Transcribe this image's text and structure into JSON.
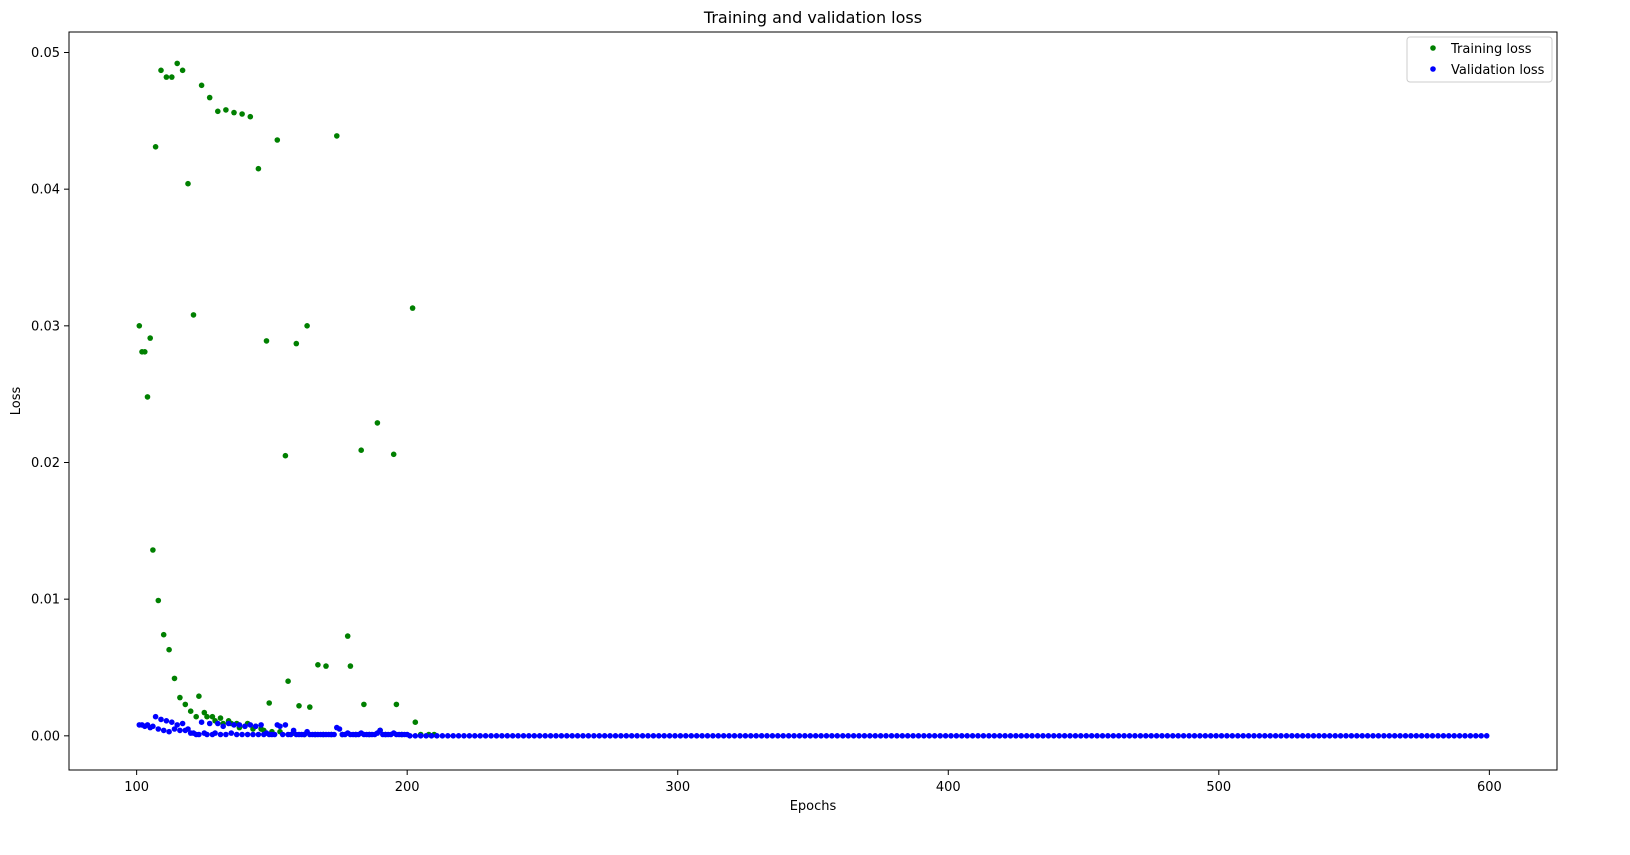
{
  "chart_data": {
    "type": "scatter",
    "title": "Training and validation loss",
    "xlabel": "Epochs",
    "ylabel": "Loss",
    "xlim": [
      75,
      625
    ],
    "ylim": [
      -0.0025,
      0.0515
    ],
    "xticks": [
      100,
      200,
      300,
      400,
      500,
      600
    ],
    "xtick_labels": [
      "100",
      "200",
      "300",
      "400",
      "500",
      "600"
    ],
    "yticks": [
      0.0,
      0.01,
      0.02,
      0.03,
      0.04,
      0.05
    ],
    "ytick_labels": [
      "0.00",
      "0.01",
      "0.02",
      "0.03",
      "0.04",
      "0.05"
    ],
    "grid": false,
    "legend_position": "top-right",
    "series": [
      {
        "name": "Training loss",
        "color": "#008000",
        "points": [
          [
            101,
            0.03
          ],
          [
            102,
            0.0281
          ],
          [
            103,
            0.0281
          ],
          [
            104,
            0.0248
          ],
          [
            105,
            0.0291
          ],
          [
            106,
            0.0136
          ],
          [
            107,
            0.0431
          ],
          [
            108,
            0.0099
          ],
          [
            109,
            0.0487
          ],
          [
            110,
            0.0074
          ],
          [
            111,
            0.0482
          ],
          [
            112,
            0.0063
          ],
          [
            113,
            0.0482
          ],
          [
            114,
            0.0042
          ],
          [
            115,
            0.0492
          ],
          [
            116,
            0.0028
          ],
          [
            117,
            0.0487
          ],
          [
            118,
            0.0023
          ],
          [
            119,
            0.0404
          ],
          [
            120,
            0.0018
          ],
          [
            121,
            0.0308
          ],
          [
            122,
            0.0014
          ],
          [
            123,
            0.0029
          ],
          [
            124,
            0.0476
          ],
          [
            125,
            0.0017
          ],
          [
            126,
            0.0014
          ],
          [
            127,
            0.0467
          ],
          [
            128,
            0.0014
          ],
          [
            129,
            0.0011
          ],
          [
            130,
            0.0457
          ],
          [
            131,
            0.0013
          ],
          [
            132,
            0.0009
          ],
          [
            133,
            0.0458
          ],
          [
            134,
            0.0011
          ],
          [
            135,
            0.0009
          ],
          [
            136,
            0.0456
          ],
          [
            137,
            0.0009
          ],
          [
            138,
            0.0006
          ],
          [
            139,
            0.0455
          ],
          [
            140,
            0.0007
          ],
          [
            141,
            0.0009
          ],
          [
            142,
            0.0453
          ],
          [
            143,
            0.0005
          ],
          [
            144,
            0.0007
          ],
          [
            145,
            0.0415
          ],
          [
            146,
            0.0005
          ],
          [
            147,
            0.0004
          ],
          [
            148,
            0.0289
          ],
          [
            149,
            0.0024
          ],
          [
            150,
            0.0003
          ],
          [
            152,
            0.0436
          ],
          [
            153,
            0.0003
          ],
          [
            155,
            0.0205
          ],
          [
            156,
            0.004
          ],
          [
            158,
            0.0002
          ],
          [
            159,
            0.0287
          ],
          [
            160,
            0.0022
          ],
          [
            162,
            0.0001
          ],
          [
            163,
            0.03
          ],
          [
            164,
            0.0021
          ],
          [
            166,
            0.0001
          ],
          [
            167,
            0.0052
          ],
          [
            169,
            0.0001
          ],
          [
            170,
            0.0051
          ],
          [
            172,
            0.0001
          ],
          [
            174,
            0.0439
          ],
          [
            176,
            0.0001
          ],
          [
            178,
            0.0073
          ],
          [
            179,
            0.0051
          ],
          [
            181,
            0.0001
          ],
          [
            183,
            0.0209
          ],
          [
            184,
            0.0023
          ],
          [
            186,
            0.0001
          ],
          [
            189,
            0.0229
          ],
          [
            190,
            0.0004
          ],
          [
            192,
            0.0001
          ],
          [
            195,
            0.0206
          ],
          [
            196,
            0.0023
          ],
          [
            198,
            0.0001
          ],
          [
            202,
            0.0313
          ],
          [
            203,
            0.001
          ],
          [
            205,
            0.0001
          ],
          [
            208,
            0.0001
          ],
          [
            210,
            0.0001
          ]
        ]
      },
      {
        "name": "Validation loss",
        "color": "#0000ff",
        "points": [
          [
            101,
            0.0008
          ],
          [
            102,
            0.0008
          ],
          [
            103,
            0.0007
          ],
          [
            104,
            0.0008
          ],
          [
            105,
            0.0006
          ],
          [
            106,
            0.0007
          ],
          [
            107,
            0.0014
          ],
          [
            108,
            0.0005
          ],
          [
            109,
            0.0012
          ],
          [
            110,
            0.0004
          ],
          [
            111,
            0.0011
          ],
          [
            112,
            0.0003
          ],
          [
            113,
            0.001
          ],
          [
            114,
            0.0005
          ],
          [
            115,
            0.0008
          ],
          [
            116,
            0.0004
          ],
          [
            117,
            0.0009
          ],
          [
            118,
            0.0004
          ],
          [
            119,
            0.0005
          ],
          [
            120,
            0.0002
          ],
          [
            121,
            0.0002
          ],
          [
            122,
            0.0001
          ],
          [
            123,
            0.0001
          ],
          [
            124,
            0.001
          ],
          [
            125,
            0.0002
          ],
          [
            126,
            0.0001
          ],
          [
            127,
            0.0009
          ],
          [
            128,
            0.0001
          ],
          [
            129,
            0.0002
          ],
          [
            130,
            0.0009
          ],
          [
            131,
            0.0001
          ],
          [
            132,
            0.0007
          ],
          [
            133,
            0.0001
          ],
          [
            134,
            0.0009
          ],
          [
            135,
            0.0002
          ],
          [
            136,
            0.0008
          ],
          [
            137,
            0.0001
          ],
          [
            138,
            0.0008
          ],
          [
            139,
            0.0001
          ],
          [
            140,
            0.0007
          ],
          [
            141,
            0.0001
          ],
          [
            142,
            0.0008
          ],
          [
            143,
            0.0001
          ],
          [
            144,
            0.0007
          ],
          [
            145,
            0.0001
          ],
          [
            146,
            0.0008
          ],
          [
            147,
            0.0001
          ],
          [
            148,
            0.0002
          ],
          [
            149,
            0.0001
          ],
          [
            150,
            0.0001
          ],
          [
            151,
            0.0001
          ],
          [
            152,
            0.0008
          ],
          [
            153,
            0.0007
          ],
          [
            154,
            0.0001
          ],
          [
            155,
            0.0008
          ],
          [
            156,
            0.0001
          ],
          [
            157,
            0.0001
          ],
          [
            158,
            0.0004
          ],
          [
            159,
            0.0001
          ],
          [
            160,
            0.0001
          ],
          [
            161,
            0.0001
          ],
          [
            162,
            0.0001
          ],
          [
            163,
            0.0003
          ],
          [
            164,
            0.0001
          ],
          [
            165,
            0.0001
          ],
          [
            166,
            0.0001
          ],
          [
            167,
            0.0001
          ],
          [
            168,
            0.0001
          ],
          [
            169,
            0.0001
          ],
          [
            170,
            0.0001
          ],
          [
            171,
            0.0001
          ],
          [
            172,
            0.0001
          ],
          [
            173,
            0.0001
          ],
          [
            174,
            0.0006
          ],
          [
            175,
            0.0005
          ],
          [
            176,
            0.0001
          ],
          [
            177,
            0.0001
          ],
          [
            178,
            0.0002
          ],
          [
            179,
            0.0001
          ],
          [
            180,
            0.0001
          ],
          [
            181,
            0.0001
          ],
          [
            182,
            0.0001
          ],
          [
            183,
            0.0002
          ],
          [
            184,
            0.0001
          ],
          [
            185,
            0.0001
          ],
          [
            186,
            0.0001
          ],
          [
            187,
            0.0001
          ],
          [
            188,
            0.0001
          ],
          [
            189,
            0.0002
          ],
          [
            190,
            0.0004
          ],
          [
            191,
            0.0001
          ],
          [
            192,
            0.0001
          ],
          [
            193,
            0.0001
          ],
          [
            194,
            0.0001
          ],
          [
            195,
            0.0002
          ],
          [
            196,
            0.0001
          ],
          [
            197,
            0.0001
          ],
          [
            198,
            0.0001
          ],
          [
            199,
            0.0001
          ],
          [
            200,
            0.0001
          ]
        ],
        "flat_range": {
          "x_start": 201,
          "x_end": 600,
          "step": 2,
          "y": 0.0
        }
      }
    ]
  }
}
